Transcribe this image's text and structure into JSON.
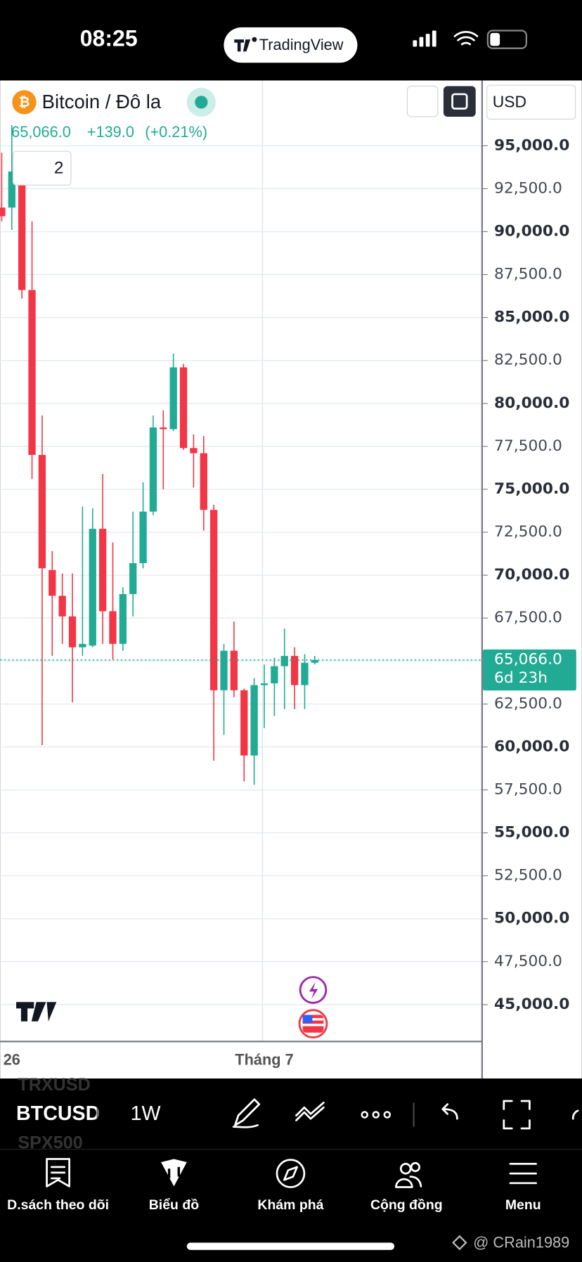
{
  "status_bar": {
    "time": "08:25",
    "app": "TradingView"
  },
  "header": {
    "symbol_name": "Bitcoin / Đô la",
    "last": "65,066.0",
    "change": "+139.0",
    "change_percent": "(+0.21%)",
    "indicator_count": "2",
    "currency": "USD"
  },
  "chart_data": {
    "type": "candlestick",
    "categories": [
      null,
      "26",
      null,
      null,
      null,
      null,
      null,
      null,
      null,
      null,
      null,
      null,
      null,
      null,
      null,
      null,
      null,
      null,
      null,
      null,
      null,
      null,
      null,
      null,
      null,
      null,
      "Tháng 7",
      null,
      null,
      null,
      null,
      null
    ],
    "open": [
      91400,
      91400,
      93500,
      86600,
      77000,
      70300,
      68800,
      67600,
      65800,
      65900,
      72700,
      67900,
      66000,
      68900,
      70700,
      73700,
      78600,
      78500,
      82100,
      77400,
      77100,
      73800,
      63300,
      65600,
      63300,
      59500,
      63600,
      63700,
      64700,
      65300,
      63600,
      64900
    ],
    "high": [
      94600,
      96200,
      94300,
      90600,
      79300,
      71400,
      70100,
      70100,
      74000,
      73900,
      75900,
      71900,
      69300,
      73700,
      75400,
      79300,
      79600,
      82900,
      82300,
      78200,
      78100,
      74100,
      66000,
      67300,
      63400,
      64000,
      64800,
      65200,
      66900,
      65800,
      65400,
      65300
    ],
    "low": [
      90600,
      90100,
      86100,
      75600,
      60100,
      65300,
      66000,
      62600,
      65300,
      65800,
      66000,
      65100,
      65600,
      67600,
      70400,
      73500,
      75000,
      78400,
      77300,
      75100,
      72600,
      59200,
      60700,
      62900,
      58000,
      57800,
      61100,
      61800,
      62200,
      62200,
      62200,
      64800
    ],
    "close": [
      90900,
      93500,
      86600,
      77000,
      70400,
      68800,
      67600,
      65800,
      66000,
      72700,
      67900,
      66000,
      68900,
      70700,
      73700,
      78600,
      78500,
      82100,
      77400,
      77100,
      73800,
      63300,
      65600,
      63300,
      59500,
      63600,
      63700,
      64700,
      65300,
      63600,
      64900,
      65066
    ],
    "up_color": "#22ab94",
    "down_color": "#f23645",
    "ylim": [
      42900,
      98800
    ],
    "yticks": [
      {
        "value": 95000,
        "label": "95,000.0"
      },
      {
        "value": 92500,
        "label": "92,500.0"
      },
      {
        "value": 90000,
        "label": "90,000.0"
      },
      {
        "value": 87500,
        "label": "87,500.0"
      },
      {
        "value": 85000,
        "label": "85,000.0"
      },
      {
        "value": 82500,
        "label": "82,500.0"
      },
      {
        "value": 80000,
        "label": "80,000.0"
      },
      {
        "value": 77500,
        "label": "77,500.0"
      },
      {
        "value": 75000,
        "label": "75,000.0"
      },
      {
        "value": 72500,
        "label": "72,500.0"
      },
      {
        "value": 70000,
        "label": "70,000.0"
      },
      {
        "value": 67500,
        "label": "67,500.0"
      },
      {
        "value": 65000,
        "label": "65,000.0"
      },
      {
        "value": 62500,
        "label": "62,500.0"
      },
      {
        "value": 60000,
        "label": "60,000.0"
      },
      {
        "value": 57500,
        "label": "57,500.0"
      },
      {
        "value": 55000,
        "label": "55,000.0"
      },
      {
        "value": 52500,
        "label": "52,500.0"
      },
      {
        "value": 50000,
        "label": "50,000.0"
      },
      {
        "value": 47500,
        "label": "47,500.0"
      },
      {
        "value": 45000,
        "label": "45,000.0"
      }
    ],
    "grid": true,
    "last_price": {
      "value": 65066,
      "label": "65,066.0"
    },
    "countdown": "6d 23h"
  },
  "toolbar": {
    "symbols": [
      "TRXUSD",
      "BTCUSD",
      "SPX500"
    ],
    "interval": "1W"
  },
  "nav": {
    "items": [
      "D.sách theo dõi",
      "Biểu đồ",
      "Khám phá",
      "Cộng đồng",
      "Menu"
    ]
  },
  "watermark": "@ CRain1989"
}
